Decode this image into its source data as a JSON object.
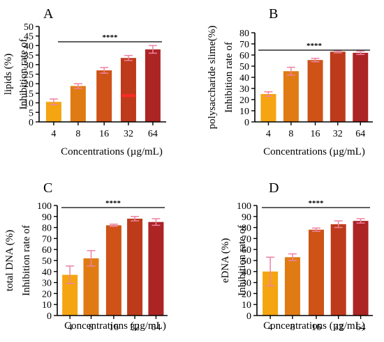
{
  "figure": {
    "panels": [
      {
        "letter": "A",
        "ylabel_lines": [
          "Inhibition rate of",
          "lipids (%)"
        ],
        "xlabel": "Concentrations (µg/mL)"
      },
      {
        "letter": "B",
        "ylabel_lines": [
          "Inhibition rate of",
          "polysaccharide slime(%)"
        ],
        "xlabel": "Concentrations (µg/mL)"
      },
      {
        "letter": "C",
        "ylabel_lines": [
          "Inhibition rate of",
          "total DNA (%)"
        ],
        "xlabel": "Concentrations (µg/mL)"
      },
      {
        "letter": "D",
        "ylabel_lines": [
          "Inhibition rate of",
          "eDNA (%)"
        ],
        "xlabel": "Concentrations (µg/mL)"
      }
    ]
  },
  "colors": {
    "bars": [
      "#f5a511",
      "#e07b14",
      "#cf5217",
      "#bd3b1a",
      "#ac2424"
    ],
    "error_bar": "#ee82a3",
    "axis": "#000000",
    "significance_line": "#000000",
    "point_artifact": "#ff2a2a"
  },
  "chart_data": [
    {
      "type": "bar",
      "panel": "A",
      "categories": [
        "4",
        "8",
        "16",
        "32",
        "64"
      ],
      "values": [
        10.5,
        18.8,
        27.0,
        33.5,
        38.0
      ],
      "errors": [
        1.5,
        1.2,
        1.5,
        1.3,
        2.0
      ],
      "ylim": [
        0,
        50
      ],
      "yticks": [
        0,
        5,
        10,
        15,
        20,
        25,
        30,
        35,
        40,
        45,
        50
      ],
      "significance": "****",
      "xlabel": "Concentrations (µg/mL)",
      "ylabel": "Inhibition rate of lipids (%)"
    },
    {
      "type": "bar",
      "panel": "B",
      "categories": [
        "4",
        "8",
        "16",
        "32",
        "64"
      ],
      "values": [
        25.0,
        45.5,
        55.5,
        63.0,
        62.0
      ],
      "errors": [
        2.0,
        3.5,
        1.5,
        1.0,
        1.5
      ],
      "ylim": [
        0,
        80
      ],
      "yticks": [
        0,
        10,
        20,
        30,
        40,
        50,
        60,
        70,
        80
      ],
      "significance": "****",
      "xlabel": "Concentrations (µg/mL)",
      "ylabel": "Inhibition rate of polysaccharide slime(%)"
    },
    {
      "type": "bar",
      "panel": "C",
      "categories": [
        "4",
        "8",
        "16",
        "32",
        "64"
      ],
      "values": [
        37.0,
        52.0,
        82.0,
        88.0,
        85.0
      ],
      "errors": [
        8.0,
        7.0,
        1.0,
        2.0,
        3.0
      ],
      "ylim": [
        0,
        100
      ],
      "yticks": [
        0,
        10,
        20,
        30,
        40,
        50,
        60,
        70,
        80,
        90,
        100
      ],
      "significance": "****",
      "xlabel": "Concentrations (µg/mL)",
      "ylabel": "Inhibition rate of total DNA (%)"
    },
    {
      "type": "bar",
      "panel": "D",
      "categories": [
        "4",
        "8",
        "16",
        "32",
        "64"
      ],
      "values": [
        40.0,
        53.0,
        78.0,
        83.0,
        86.0
      ],
      "errors": [
        13.0,
        3.0,
        1.5,
        3.0,
        2.0
      ],
      "ylim": [
        0,
        100
      ],
      "yticks": [
        0,
        10,
        20,
        30,
        40,
        50,
        60,
        70,
        80,
        90,
        100
      ],
      "significance": "****",
      "xlabel": "Concentrations (µg/mL)",
      "ylabel": "Inhibition rate of eDNA (%)"
    }
  ]
}
